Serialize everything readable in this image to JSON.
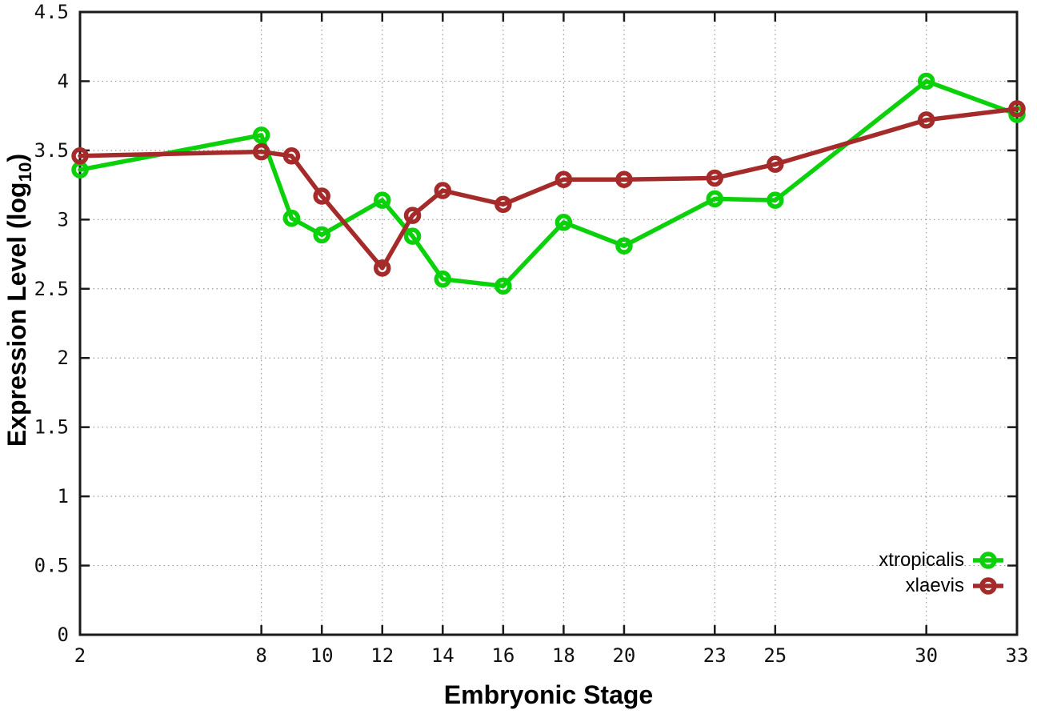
{
  "chart_data": {
    "type": "line",
    "title": "",
    "xlabel": "Embryonic Stage",
    "ylabel": "Expression Level (log10)",
    "ylabel_parts": {
      "prefix": "Expression Level (log",
      "subscript": "10",
      "suffix": ")"
    },
    "x": [
      2,
      8,
      9,
      10,
      12,
      13,
      14,
      16,
      18,
      20,
      23,
      25,
      30,
      33
    ],
    "series": [
      {
        "name": "xtropicalis",
        "color": "#0ad10a",
        "values": [
          3.36,
          3.61,
          3.01,
          2.89,
          3.14,
          2.88,
          2.57,
          2.52,
          2.98,
          2.81,
          3.15,
          3.14,
          4.0,
          3.76
        ]
      },
      {
        "name": "xlaevis",
        "color": "#a52a2a",
        "values": [
          3.46,
          3.49,
          3.46,
          3.17,
          2.65,
          3.03,
          3.21,
          3.11,
          3.29,
          3.29,
          3.3,
          3.4,
          3.72,
          3.8
        ]
      }
    ],
    "xlim": [
      2,
      33
    ],
    "ylim": [
      0,
      4.5
    ],
    "x_tick_values": [
      2,
      8,
      10,
      12,
      14,
      16,
      18,
      20,
      23,
      25,
      30,
      33
    ],
    "x_tick_labels": [
      "2",
      "8",
      "10",
      "12",
      "14",
      "16",
      "18",
      "20",
      "23",
      "25",
      "30",
      "33"
    ],
    "y_tick_values": [
      0,
      0.5,
      1,
      1.5,
      2,
      2.5,
      3,
      3.5,
      4,
      4.5
    ],
    "y_tick_labels": [
      "0",
      "0.5",
      "1",
      "1.5",
      "2",
      "2.5",
      "3",
      "3.5",
      "4",
      "4.5"
    ],
    "grid": true,
    "legend_position": "bottom-right",
    "marker": "open-circle"
  },
  "colors": {
    "background": "#ffffff",
    "axis": "#1a1a1a",
    "grid": "#9a9a9a",
    "tick_text": "#111111",
    "title_text": "#000000"
  }
}
